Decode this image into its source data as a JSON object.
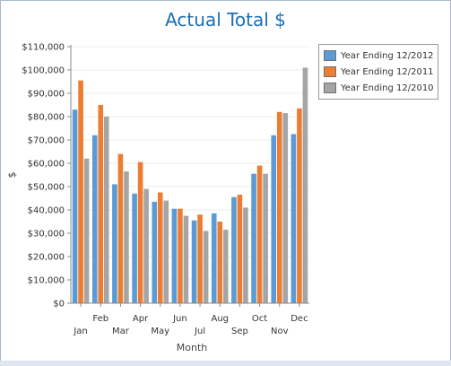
{
  "chart_data": {
    "type": "bar",
    "title": "Actual Total $",
    "xlabel": "Month",
    "ylabel": "$",
    "ylim": [
      0,
      110000
    ],
    "yticks": [
      "$0",
      "$10,000",
      "$20,000",
      "$30,000",
      "$40,000",
      "$50,000",
      "$60,000",
      "$70,000",
      "$80,000",
      "$90,000",
      "$100,000",
      "$110,000"
    ],
    "categories": [
      "Jan",
      "Feb",
      "Mar",
      "Apr",
      "May",
      "Jun",
      "Jul",
      "Aug",
      "Sep",
      "Oct",
      "Nov",
      "Dec"
    ],
    "series": [
      {
        "name": "Year Ending 12/2012",
        "color": "#5b9bd5",
        "values": [
          83000,
          72000,
          51000,
          47000,
          43500,
          40500,
          35500,
          38500,
          45500,
          55500,
          72000,
          72500
        ]
      },
      {
        "name": "Year Ending 12/2011",
        "color": "#ed7d31",
        "values": [
          95500,
          85000,
          64000,
          60500,
          47500,
          40500,
          38000,
          35000,
          46500,
          59000,
          82000,
          83500
        ]
      },
      {
        "name": "Year Ending 12/2010",
        "color": "#a5a5a5",
        "values": [
          62000,
          80000,
          56500,
          49000,
          44000,
          37500,
          31000,
          31500,
          41000,
          55500,
          81500,
          101000
        ]
      }
    ],
    "grid": true,
    "legend_position": "right"
  }
}
